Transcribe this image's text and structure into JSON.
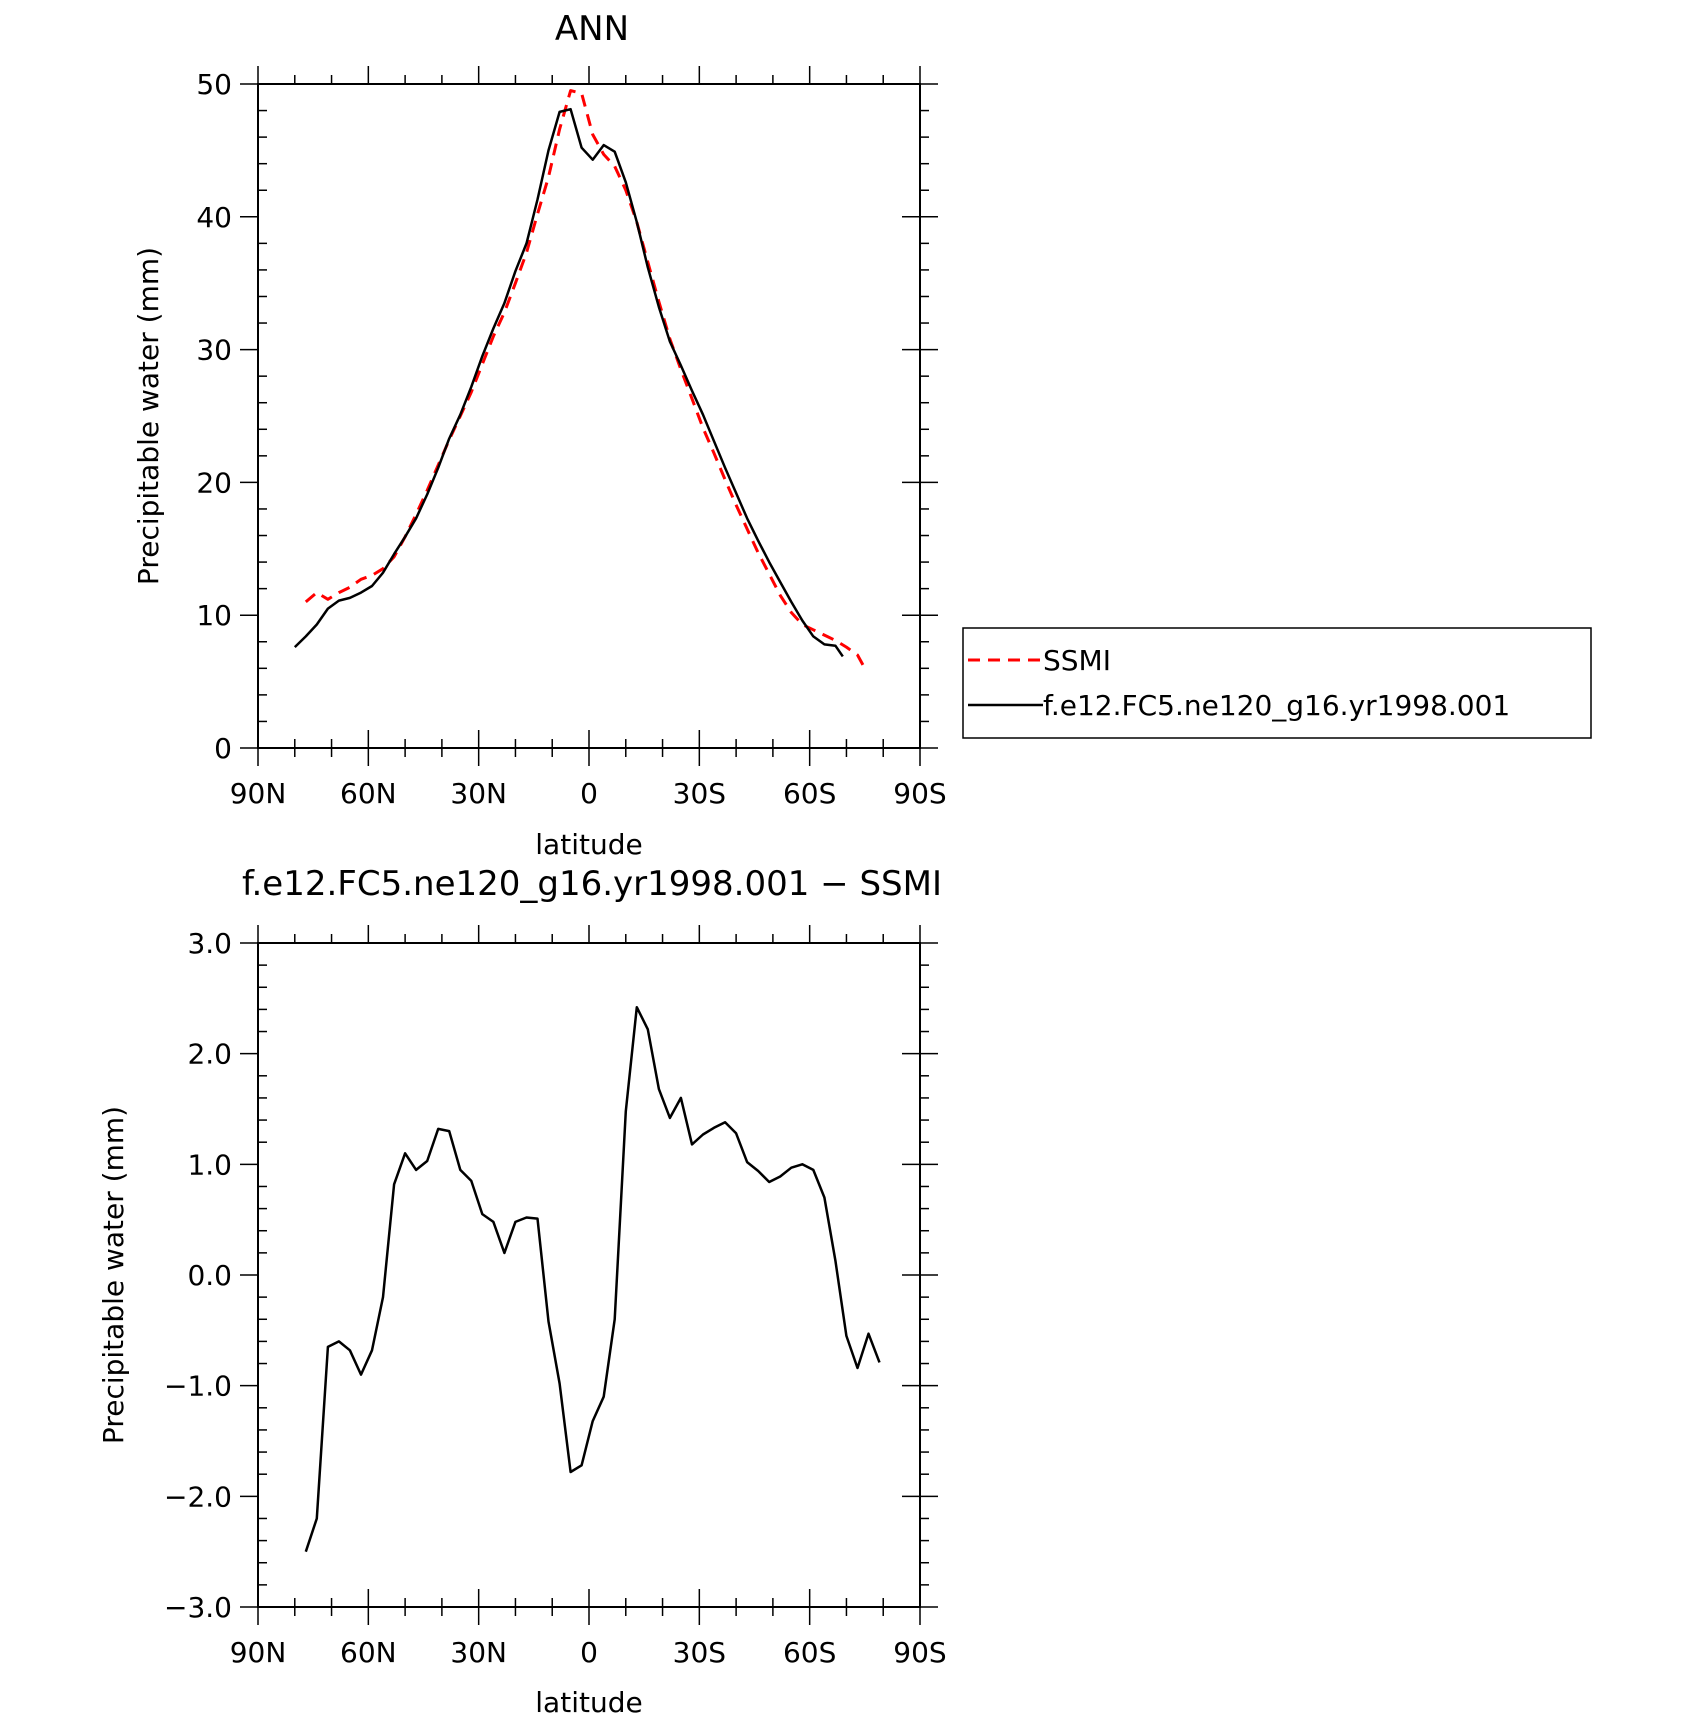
{
  "chart_data": [
    {
      "type": "line",
      "title": "ANN",
      "xlabel": "latitude",
      "ylabel": "Precipitable water (mm)",
      "xlim": [
        90,
        -90
      ],
      "ylim": [
        0,
        50
      ],
      "x_ticks": [
        90,
        60,
        30,
        0,
        -30,
        -60,
        -90
      ],
      "x_tick_labels": [
        "90N",
        "60N",
        "30N",
        "0",
        "30S",
        "60S",
        "90S"
      ],
      "y_ticks": [
        0,
        10,
        20,
        30,
        40,
        50
      ],
      "y_tick_labels": [
        "0",
        "10",
        "20",
        "30",
        "40",
        "50"
      ],
      "legend": {
        "placement": "right",
        "entries": [
          "SSMI",
          "f.e12.FC5.ne120_g16.yr1998.001"
        ]
      },
      "series": [
        {
          "name": "SSMI",
          "color": "#ff0000",
          "dash": true,
          "points": [
            [
              77,
              11
            ],
            [
              74,
              11.7
            ],
            [
              71,
              11.2
            ],
            [
              68,
              11.7
            ],
            [
              65,
              12.1
            ],
            [
              62,
              12.7
            ],
            [
              59,
              13
            ],
            [
              56,
              13.5
            ],
            [
              53,
              14.4
            ],
            [
              50,
              15.9
            ],
            [
              47,
              17.6
            ],
            [
              44,
              19.4
            ],
            [
              41,
              21.3
            ],
            [
              38,
              23.2
            ],
            [
              35,
              25
            ],
            [
              32,
              26.8
            ],
            [
              29,
              28.9
            ],
            [
              26,
              31
            ],
            [
              23,
              32.8
            ],
            [
              20,
              35
            ],
            [
              17,
              37.3
            ],
            [
              14,
              40.2
            ],
            [
              11,
              43
            ],
            [
              8,
              46.6
            ],
            [
              5,
              49.5
            ],
            [
              2,
              49.3
            ],
            [
              -1,
              46.2
            ],
            [
              -4,
              44.7
            ],
            [
              -7,
              43.8
            ],
            [
              -10,
              42
            ],
            [
              -13,
              39.6
            ],
            [
              -16,
              36.6
            ],
            [
              -19,
              33.6
            ],
            [
              -22,
              30.8
            ],
            [
              -25,
              28.5
            ],
            [
              -28,
              26.3
            ],
            [
              -31,
              24.1
            ],
            [
              -34,
              22.2
            ],
            [
              -37,
              20.2
            ],
            [
              -40,
              18.3
            ],
            [
              -43,
              16.5
            ],
            [
              -46,
              14.7
            ],
            [
              -49,
              13.1
            ],
            [
              -52,
              11.5
            ],
            [
              -55,
              10.2
            ],
            [
              -58,
              9.3
            ],
            [
              -61,
              8.9
            ],
            [
              -64,
              8.5
            ],
            [
              -67,
              8.1
            ],
            [
              -70,
              7.6
            ],
            [
              -73,
              7
            ],
            [
              -75,
              6
            ]
          ]
        },
        {
          "name": "f.e12.FC5.ne120_g16.yr1998.001",
          "color": "#000000",
          "dash": false,
          "points": [
            [
              80,
              7.6
            ],
            [
              77,
              8.4
            ],
            [
              74,
              9.3
            ],
            [
              71,
              10.5
            ],
            [
              68,
              11.1
            ],
            [
              65,
              11.3
            ],
            [
              62,
              11.7
            ],
            [
              59,
              12.2
            ],
            [
              56,
              13.2
            ],
            [
              53,
              14.6
            ],
            [
              50,
              15.9
            ],
            [
              47,
              17.3
            ],
            [
              44,
              19.1
            ],
            [
              41,
              21.1
            ],
            [
              38,
              23.3
            ],
            [
              35,
              25.1
            ],
            [
              32,
              27.2
            ],
            [
              29,
              29.5
            ],
            [
              26,
              31.6
            ],
            [
              23,
              33.5
            ],
            [
              20,
              35.9
            ],
            [
              17,
              38
            ],
            [
              14,
              41.3
            ],
            [
              11,
              45
            ],
            [
              8,
              47.9
            ],
            [
              5,
              48.1
            ],
            [
              2,
              45.2
            ],
            [
              -1,
              44.3
            ],
            [
              -4,
              45.4
            ],
            [
              -7,
              44.9
            ],
            [
              -10,
              42.6
            ],
            [
              -13,
              39.6
            ],
            [
              -16,
              36.2
            ],
            [
              -19,
              33.2
            ],
            [
              -22,
              30.6
            ],
            [
              -25,
              28.8
            ],
            [
              -28,
              26.9
            ],
            [
              -31,
              25.1
            ],
            [
              -34,
              23.1
            ],
            [
              -37,
              21.1
            ],
            [
              -40,
              19.2
            ],
            [
              -43,
              17.3
            ],
            [
              -46,
              15.6
            ],
            [
              -49,
              14
            ],
            [
              -52,
              12.5
            ],
            [
              -55,
              11
            ],
            [
              -58,
              9.6
            ],
            [
              -61,
              8.4
            ],
            [
              -64,
              7.8
            ],
            [
              -67,
              7.7
            ],
            [
              -69,
              6.9
            ]
          ]
        }
      ]
    },
    {
      "type": "line",
      "title": "f.e12.FC5.ne120_g16.yr1998.001 − SSMI",
      "xlabel": "latitude",
      "ylabel": "Precipitable water (mm)",
      "xlim": [
        90,
        -90
      ],
      "ylim": [
        -3,
        3
      ],
      "x_ticks": [
        90,
        60,
        30,
        0,
        -30,
        -60,
        -90
      ],
      "x_tick_labels": [
        "90N",
        "60N",
        "30N",
        "0",
        "30S",
        "60S",
        "90S"
      ],
      "y_ticks": [
        -3,
        -2,
        -1,
        0,
        1,
        2,
        3
      ],
      "y_tick_labels": [
        "−3.0",
        "−2.0",
        "−1.0",
        "0.0",
        "1.0",
        "2.0",
        "3.0"
      ],
      "series": [
        {
          "color": "#000000",
          "dash": false,
          "points": [
            [
              77,
              -2.5
            ],
            [
              74,
              -2.2
            ],
            [
              71,
              -0.65
            ],
            [
              68,
              -0.6
            ],
            [
              65,
              -0.68
            ],
            [
              62,
              -0.9
            ],
            [
              59,
              -0.68
            ],
            [
              56,
              -0.2
            ],
            [
              53,
              0.82
            ],
            [
              50,
              1.1
            ],
            [
              47,
              0.95
            ],
            [
              44,
              1.03
            ],
            [
              41,
              1.32
            ],
            [
              38,
              1.3
            ],
            [
              35,
              0.95
            ],
            [
              32,
              0.85
            ],
            [
              29,
              0.55
            ],
            [
              26,
              0.48
            ],
            [
              23,
              0.2
            ],
            [
              20,
              0.48
            ],
            [
              17,
              0.52
            ],
            [
              14,
              0.51
            ],
            [
              11,
              -0.42
            ],
            [
              8,
              -0.98
            ],
            [
              5,
              -1.78
            ],
            [
              2,
              -1.72
            ],
            [
              -1,
              -1.32
            ],
            [
              -4,
              -1.1
            ],
            [
              -7,
              -0.4
            ],
            [
              -10,
              1.48
            ],
            [
              -13,
              2.42
            ],
            [
              -16,
              2.22
            ],
            [
              -19,
              1.68
            ],
            [
              -22,
              1.42
            ],
            [
              -25,
              1.6
            ],
            [
              -28,
              1.18
            ],
            [
              -31,
              1.27
            ],
            [
              -34,
              1.33
            ],
            [
              -37,
              1.38
            ],
            [
              -40,
              1.28
            ],
            [
              -43,
              1.02
            ],
            [
              -46,
              0.94
            ],
            [
              -49,
              0.84
            ],
            [
              -52,
              0.89
            ],
            [
              -55,
              0.97
            ],
            [
              -58,
              1
            ],
            [
              -61,
              0.95
            ],
            [
              -64,
              0.7
            ],
            [
              -67,
              0.13
            ],
            [
              -70,
              -0.55
            ],
            [
              -73,
              -0.84
            ],
            [
              -76,
              -0.53
            ],
            [
              -79,
              -0.79
            ]
          ]
        }
      ]
    }
  ]
}
